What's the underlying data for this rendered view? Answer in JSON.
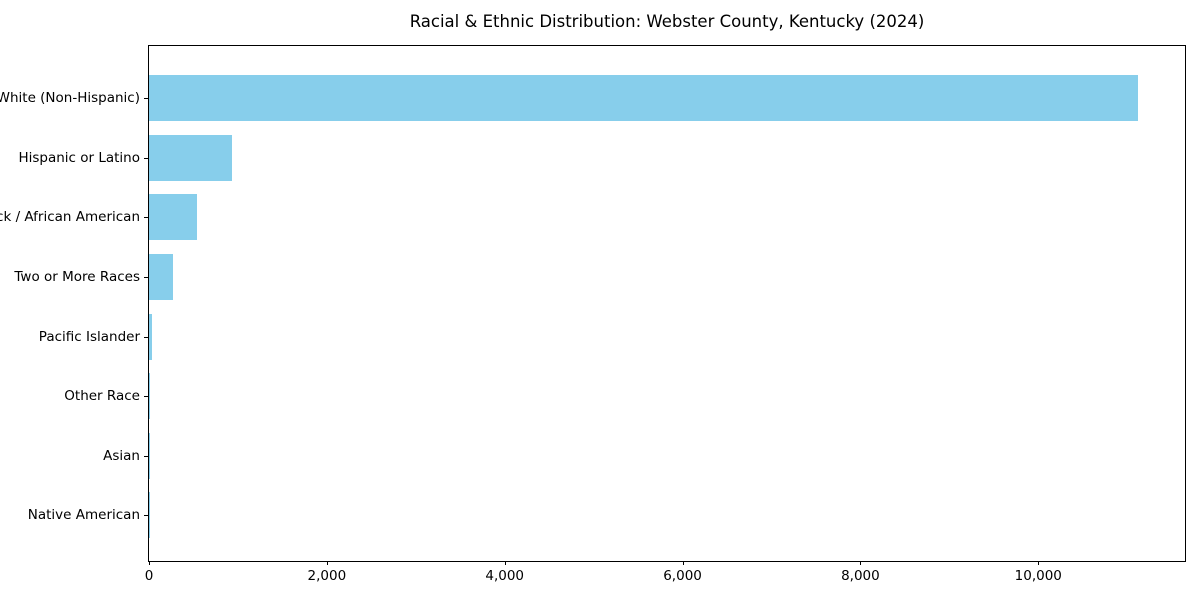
{
  "chart_data": {
    "type": "bar",
    "orientation": "horizontal",
    "title": "Racial & Ethnic Distribution: Webster County, Kentucky (2024)",
    "categories": [
      "White (Non-Hispanic)",
      "Hispanic or Latino",
      "Black / African American",
      "Two or More Races",
      "Pacific Islander",
      "Other Race",
      "Asian",
      "Native American"
    ],
    "values": [
      11120,
      930,
      540,
      270,
      35,
      10,
      6,
      3
    ],
    "bar_color": "#87CEEB",
    "xlabel": "",
    "ylabel": "",
    "xlim": [
      0,
      11650
    ],
    "x_ticks": [
      0,
      2000,
      4000,
      6000,
      8000,
      10000
    ],
    "x_tick_labels": [
      "0",
      "2,000",
      "4,000",
      "6,000",
      "8,000",
      "10,000"
    ],
    "grid": false,
    "legend": null,
    "background_color": "#ffffff",
    "text_color": "#000000"
  }
}
